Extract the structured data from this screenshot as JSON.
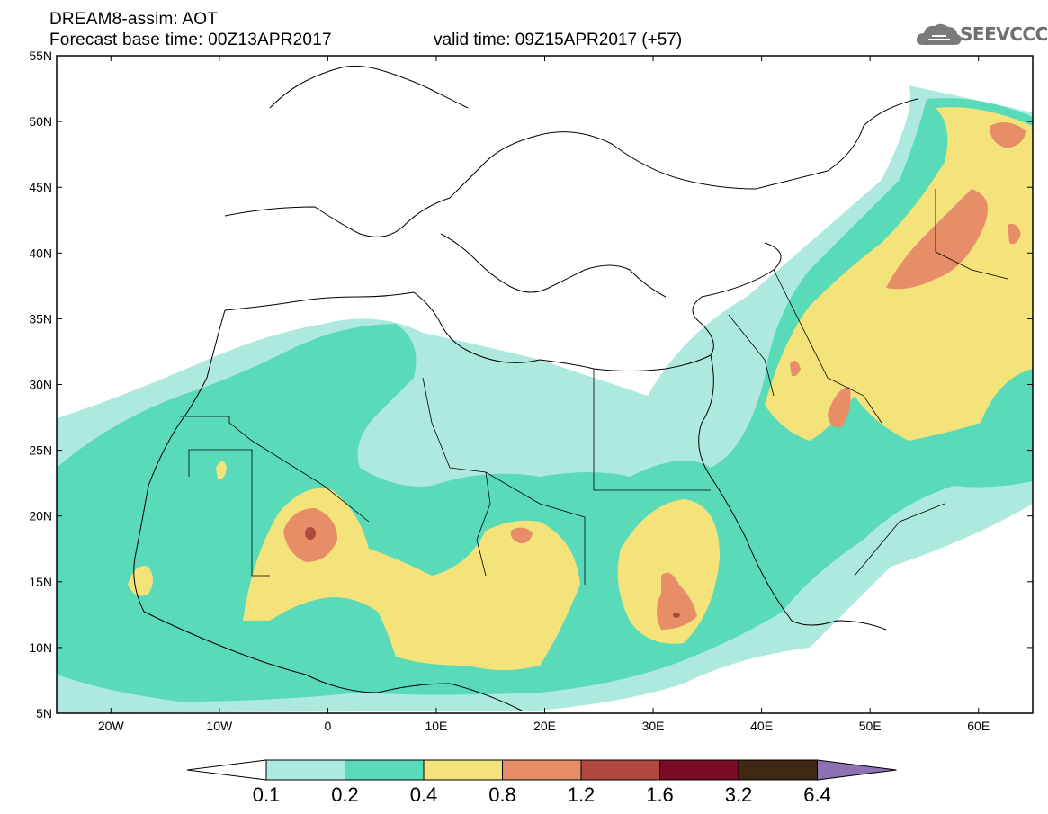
{
  "header": {
    "title": "DREAM8-assim: AOT",
    "base_time": "Forecast base time: 00Z13APR2017",
    "valid_time": "valid time: 09Z15APR2017 (+57)"
  },
  "logo": {
    "text": "SEEVCCC",
    "icon": "cloud-logo-icon"
  },
  "map": {
    "lon_range": [
      -25,
      65
    ],
    "lat_range": [
      5,
      55
    ],
    "lat_ticks": [
      "55N",
      "50N",
      "45N",
      "40N",
      "35N",
      "30N",
      "25N",
      "20N",
      "15N",
      "10N",
      "5N"
    ],
    "lon_ticks": [
      "20W",
      "10W",
      "0",
      "10E",
      "20E",
      "30E",
      "40E",
      "50E",
      "60E"
    ]
  },
  "colorbar": {
    "levels": [
      "0.1",
      "0.2",
      "0.4",
      "0.8",
      "1.2",
      "1.6",
      "3.2",
      "6.4"
    ],
    "colors": [
      "#aee9dd",
      "#59dab8",
      "#f4e27a",
      "#e78e68",
      "#b0493f",
      "#7a0a26",
      "#3e2814",
      "#8c72b5"
    ],
    "below_color": "#ffffff"
  }
}
